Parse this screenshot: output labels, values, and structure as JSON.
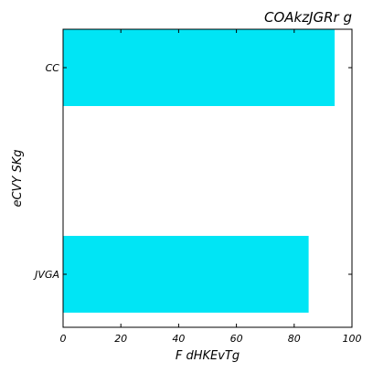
{
  "chart_data": {
    "type": "bar",
    "orientation": "horizontal",
    "title": "COAkzJGRr g",
    "xlabel": "F dHKEvTg",
    "ylabel": "eCVY SKg",
    "categories": [
      "CC",
      "JVGA"
    ],
    "values": [
      94,
      85
    ],
    "xlim": [
      0,
      100
    ],
    "xticks": [
      0,
      20,
      40,
      60,
      80,
      100
    ],
    "grid": false,
    "bar_color": "#00e5f5"
  }
}
